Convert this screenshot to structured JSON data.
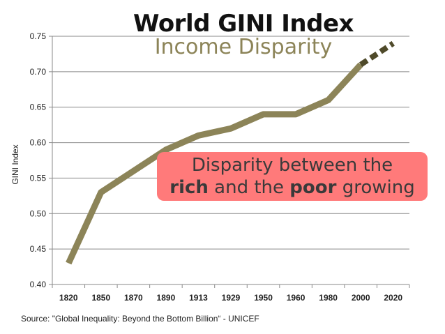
{
  "chart_data": {
    "type": "line",
    "title": "World GINI Index",
    "subtitle": "Income Disparity",
    "ylabel": "GINI Index",
    "xlabel": "",
    "categories": [
      "1820",
      "1850",
      "1870",
      "1890",
      "1913",
      "1929",
      "1950",
      "1960",
      "1980",
      "2000",
      "2020"
    ],
    "series": [
      {
        "values": [
          0.43,
          0.53,
          0.56,
          0.59,
          0.61,
          0.62,
          0.64,
          0.64,
          0.66,
          0.71,
          null
        ]
      }
    ],
    "projection": {
      "from": "2000",
      "to": "2020",
      "values": [
        0.71,
        0.74
      ]
    },
    "ylim": [
      0.4,
      0.75
    ],
    "yticks": [
      "0.40",
      "0.45",
      "0.50",
      "0.55",
      "0.60",
      "0.65",
      "0.70",
      "0.75"
    ],
    "grid": true,
    "line_color": "#8c8458",
    "projection_color": "#4f4a2a",
    "callout": {
      "line1": "Disparity between the",
      "line2_bold1": "rich",
      "line2_mid": " and the ",
      "line2_bold2": "poor",
      "line2_end": " growing",
      "background": "#ff7a7a"
    },
    "source": "Source: \"Global Inequality: Beyond the Bottom Billion“ - UNICEF"
  }
}
